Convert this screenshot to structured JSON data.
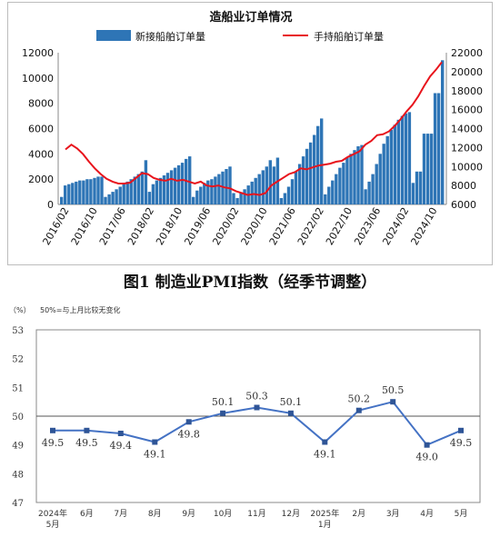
{
  "chart_data": [
    {
      "type": "bar+line",
      "title": "造船业订单情况",
      "legend": {
        "bar_label": "新接船舶订单量",
        "line_label": "手持船舶订单量",
        "placement": "top"
      },
      "colors": {
        "bar": "#2e75b6",
        "line": "#e8141c"
      },
      "y_left": {
        "range": [
          0,
          12000
        ],
        "ticks": [
          "0",
          "2000",
          "4000",
          "6000",
          "8000",
          "10000",
          "12000"
        ]
      },
      "y_right": {
        "range": [
          6000,
          22000
        ],
        "ticks": [
          "6000",
          "8000",
          "10000",
          "12000",
          "14000",
          "16000",
          "18000",
          "20000",
          "22000"
        ]
      },
      "x_tick_labels": [
        "2016/02",
        "2016/10",
        "2017/06",
        "2018/02",
        "2018/10",
        "2019/06",
        "2020/02",
        "2020/10",
        "2021/06",
        "2022/02",
        "2022/10",
        "2023/06",
        "2024/02",
        "2024/10"
      ],
      "bars": [
        600,
        1500,
        1600,
        1700,
        1800,
        1900,
        1900,
        2000,
        2000,
        2100,
        2200,
        2200,
        600,
        800,
        1000,
        1200,
        1400,
        1600,
        1800,
        2000,
        2200,
        2400,
        2600,
        3500,
        1000,
        1600,
        1900,
        2100,
        2300,
        2500,
        2700,
        2900,
        3100,
        3300,
        3600,
        3800,
        600,
        1100,
        1400,
        1700,
        1900,
        2000,
        2200,
        2400,
        2600,
        2800,
        3000,
        900,
        500,
        900,
        1200,
        1500,
        1800,
        2100,
        2400,
        2700,
        3000,
        3500,
        3000,
        3700,
        500,
        900,
        1400,
        2000,
        2600,
        3200,
        3800,
        4400,
        4900,
        5500,
        6200,
        6800,
        800,
        1400,
        1900,
        2400,
        2900,
        3300,
        3700,
        4000,
        4300,
        4600,
        4700,
        1200,
        1800,
        2400,
        3200,
        4000,
        4800,
        5400,
        5900,
        6300,
        6700,
        7000,
        7200,
        7300,
        1700,
        2600,
        2600,
        5600,
        5600,
        5600,
        8800,
        8800,
        11400
      ],
      "line": [
        11800,
        12300,
        11900,
        11300,
        10500,
        9800,
        9200,
        8700,
        8400,
        8200,
        8200,
        8300,
        8800,
        9300,
        9200,
        8800,
        8600,
        8500,
        8700,
        8500,
        8600,
        8400,
        8200,
        8400,
        8000,
        7900,
        8000,
        7800,
        7700,
        7400,
        7200,
        7000,
        7100,
        7000,
        7200,
        8000,
        8400,
        8800,
        9200,
        9400,
        9800,
        9700,
        9900,
        10100,
        10200,
        10300,
        10500,
        10600,
        11000,
        11300,
        11600,
        12300,
        12700,
        13300,
        13400,
        13700,
        14300,
        15000,
        15800,
        16500,
        17400,
        18500,
        19500,
        20200,
        21000
      ]
    },
    {
      "type": "line",
      "title": "图1 制造业PMI指数（经季节调整）",
      "unit_label": "（%）",
      "reference_label": "50%=与上月比较无变化",
      "reference_value": 50,
      "colors": {
        "line": "#4472c4",
        "marker": "#2f5597",
        "reference": "#555555"
      },
      "ylim": [
        47,
        53
      ],
      "y_ticks": [
        "47",
        "48",
        "49",
        "50",
        "51",
        "52",
        "53"
      ],
      "categories": [
        [
          "2024年",
          "5月"
        ],
        [
          "6月"
        ],
        [
          "7月"
        ],
        [
          "8月"
        ],
        [
          "9月"
        ],
        [
          "10月"
        ],
        [
          "11月"
        ],
        [
          "12月"
        ],
        [
          "2025年",
          "1月"
        ],
        [
          "2月"
        ],
        [
          "3月"
        ],
        [
          "4月"
        ],
        [
          "5月"
        ]
      ],
      "values": [
        49.5,
        49.5,
        49.4,
        49.1,
        49.8,
        50.1,
        50.3,
        50.1,
        49.1,
        50.2,
        50.5,
        49.0,
        49.5
      ],
      "value_labels": [
        "49.5",
        "49.5",
        "49.4",
        "49.1",
        "49.8",
        "50.1",
        "50.3",
        "50.1",
        "49.1",
        "50.2",
        "50.5",
        "49.0",
        "49.5"
      ]
    }
  ]
}
